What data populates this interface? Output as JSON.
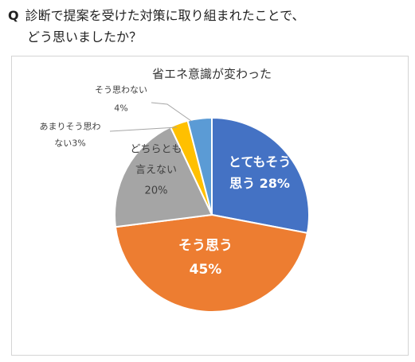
{
  "question": {
    "marker": "Q",
    "line1": "診断で提案を受けた対策に取り組まれたことで、",
    "line2": "どう思いましたか？"
  },
  "chart_data": {
    "type": "pie",
    "title": "省エネ意識が変わった",
    "start": "12 o'clock",
    "direction": "clockwise",
    "slices": [
      {
        "name": "とてもそう思う",
        "label_lines": [
          "とてもそう",
          "思う 28%"
        ],
        "value": 28,
        "color": "#4472c4",
        "label_color": "#ffffff",
        "label_weight": "bold"
      },
      {
        "name": "そう思う",
        "label_lines": [
          "そう思う",
          "45%"
        ],
        "value": 45,
        "color": "#ed7d31",
        "label_color": "#ffffff",
        "label_weight": "bold"
      },
      {
        "name": "どちらとも言えない",
        "label_lines": [
          "どちらとも",
          "言えない",
          "20%"
        ],
        "value": 20,
        "color": "#a5a5a5",
        "label_color": "#404040",
        "label_weight": "normal"
      },
      {
        "name": "あまりそう思わない",
        "label_lines": [
          "あまりそう思わ",
          "ない3%"
        ],
        "value": 3,
        "color": "#ffc000",
        "label_color": "#404040",
        "label_weight": "normal"
      },
      {
        "name": "そう思わない",
        "label_lines": [
          "そう思わない",
          "4%"
        ],
        "value": 4,
        "color": "#5b9bd5",
        "label_color": "#404040",
        "label_weight": "normal"
      }
    ]
  }
}
